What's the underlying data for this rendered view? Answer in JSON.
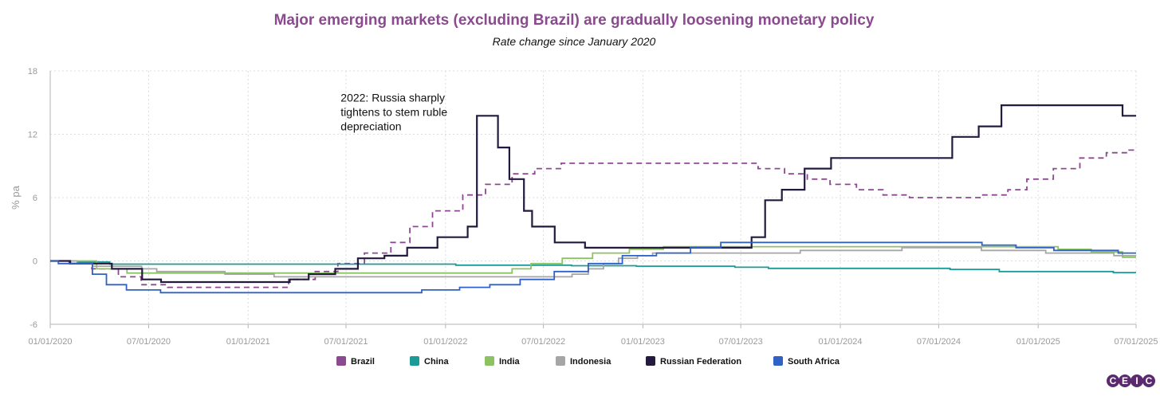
{
  "chart_data": {
    "type": "line",
    "title": "Major emerging markets (excluding Brazil) are gradually loosening monetary policy",
    "subtitle": "Rate change since January 2020",
    "ylabel": "% pa",
    "ylim": [
      -6,
      18
    ],
    "yticks": [
      "-6",
      "0",
      "6",
      "12",
      "18"
    ],
    "xlim": [
      "2020-01-01",
      "2025-07-01"
    ],
    "xticks": [
      "01/01/2020",
      "07/01/2020",
      "01/01/2021",
      "07/01/2021",
      "01/01/2022",
      "07/01/2022",
      "01/01/2023",
      "07/01/2023",
      "01/01/2024",
      "07/01/2024",
      "01/01/2025",
      "07/01/2025"
    ],
    "grid": true,
    "legend_position": "bottom",
    "annotation": {
      "lines": [
        "2022: Russia sharply",
        "tightens to stem ruble",
        "depreciation"
      ],
      "anchor_x": "2021-12-15",
      "anchor_y": 14.2
    },
    "series": [
      {
        "name": "Brazil",
        "color": "#8b4a8f",
        "dashed": true,
        "x": [
          "2020-01-01",
          "2020-02-05",
          "2020-03-18",
          "2020-05-06",
          "2020-06-17",
          "2020-08-05",
          "2021-03-17",
          "2021-05-05",
          "2021-06-16",
          "2021-08-04",
          "2021-09-22",
          "2021-10-27",
          "2021-12-08",
          "2022-02-02",
          "2022-03-16",
          "2022-05-04",
          "2022-06-15",
          "2022-08-03",
          "2023-08-02",
          "2023-09-20",
          "2023-11-01",
          "2023-12-13",
          "2024-01-31",
          "2024-03-20",
          "2024-05-08",
          "2024-09-18",
          "2024-11-06",
          "2024-12-11",
          "2025-01-29",
          "2025-03-19",
          "2025-05-07",
          "2025-06-18",
          "2025-07-01"
        ],
        "y": [
          0,
          -0.25,
          -0.75,
          -1.5,
          -2.25,
          -2.5,
          -1.75,
          -1.0,
          -0.25,
          0.75,
          1.75,
          3.25,
          4.75,
          6.25,
          7.25,
          8.25,
          8.75,
          9.25,
          8.75,
          8.25,
          7.75,
          7.25,
          6.75,
          6.25,
          6.0,
          6.25,
          6.75,
          7.75,
          8.75,
          9.75,
          10.25,
          10.5,
          10.5
        ]
      },
      {
        "name": "China",
        "color": "#1c9a96",
        "dashed": false,
        "x": [
          "2020-01-01",
          "2020-02-20",
          "2020-04-20",
          "2022-01-20",
          "2022-08-22",
          "2022-12-20",
          "2023-06-20",
          "2023-08-21",
          "2024-02-20",
          "2024-07-22",
          "2024-10-21",
          "2025-05-20",
          "2025-07-01"
        ],
        "y": [
          0,
          -0.1,
          -0.3,
          -0.4,
          -0.45,
          -0.5,
          -0.6,
          -0.7,
          -0.7,
          -0.8,
          -1.0,
          -1.1,
          -1.1
        ]
      },
      {
        "name": "India",
        "color": "#8dc262",
        "dashed": false,
        "x": [
          "2020-01-01",
          "2020-03-27",
          "2020-05-22",
          "2022-05-04",
          "2022-06-08",
          "2022-08-05",
          "2022-09-30",
          "2022-12-07",
          "2023-02-08",
          "2025-02-07",
          "2025-04-09",
          "2025-06-06",
          "2025-07-01"
        ],
        "y": [
          0,
          -0.75,
          -1.15,
          -0.75,
          -0.25,
          0.25,
          0.75,
          1.1,
          1.35,
          1.1,
          0.85,
          0.35,
          0.35
        ]
      },
      {
        "name": "Indonesia",
        "color": "#a6a6a6",
        "dashed": false,
        "x": [
          "2020-01-01",
          "2020-02-20",
          "2020-03-19",
          "2020-06-18",
          "2020-07-16",
          "2020-11-19",
          "2021-02-18",
          "2022-08-23",
          "2022-09-22",
          "2022-10-20",
          "2022-11-17",
          "2022-12-22",
          "2023-01-19",
          "2023-10-19",
          "2024-04-24",
          "2024-09-18",
          "2025-01-15",
          "2025-05-21",
          "2025-07-01"
        ],
        "y": [
          0,
          -0.25,
          -0.5,
          -0.75,
          -1.0,
          -1.25,
          -1.5,
          -1.25,
          -0.75,
          -0.25,
          0.25,
          0.5,
          0.75,
          1.0,
          1.25,
          1.0,
          0.75,
          0.5,
          0.5
        ]
      },
      {
        "name": "Russian Federation",
        "color": "#231a3d",
        "dashed": false,
        "x": [
          "2020-01-01",
          "2020-02-07",
          "2020-04-24",
          "2020-06-19",
          "2020-07-24",
          "2021-03-19",
          "2021-04-23",
          "2021-06-11",
          "2021-07-23",
          "2021-09-10",
          "2021-10-22",
          "2021-12-17",
          "2022-02-11",
          "2022-02-28",
          "2022-04-08",
          "2022-04-29",
          "2022-05-26",
          "2022-06-10",
          "2022-07-22",
          "2022-09-16",
          "2023-07-21",
          "2023-08-15",
          "2023-09-15",
          "2023-10-27",
          "2023-12-15",
          "2024-07-26",
          "2024-09-13",
          "2024-10-25",
          "2025-06-06",
          "2025-07-01"
        ],
        "y": [
          0,
          -0.25,
          -0.75,
          -1.75,
          -2.0,
          -1.75,
          -1.25,
          -0.75,
          0.25,
          0.5,
          1.25,
          2.25,
          3.25,
          13.75,
          10.75,
          7.75,
          4.75,
          3.25,
          1.75,
          1.25,
          2.25,
          5.75,
          6.75,
          8.75,
          9.75,
          11.75,
          12.75,
          14.75,
          13.75,
          13.75
        ]
      },
      {
        "name": "South Africa",
        "color": "#2f62c4",
        "dashed": false,
        "x": [
          "2020-01-01",
          "2020-01-16",
          "2020-03-19",
          "2020-04-14",
          "2020-05-21",
          "2020-07-23",
          "2021-11-18",
          "2022-01-27",
          "2022-03-24",
          "2022-05-19",
          "2022-07-21",
          "2022-09-22",
          "2022-11-24",
          "2023-01-26",
          "2023-03-30",
          "2023-05-25",
          "2024-09-19",
          "2024-11-21",
          "2025-01-30",
          "2025-05-29",
          "2025-07-01"
        ],
        "y": [
          0,
          -0.25,
          -1.25,
          -2.25,
          -2.75,
          -3.0,
          -2.75,
          -2.5,
          -2.25,
          -1.75,
          -1.0,
          -0.25,
          0.5,
          0.75,
          1.25,
          1.75,
          1.5,
          1.25,
          1.0,
          0.75,
          0.75
        ]
      }
    ]
  },
  "brand": {
    "logo_letters": [
      "C",
      "E",
      "I",
      "C"
    ],
    "logo_color": "#5b2a6e"
  }
}
